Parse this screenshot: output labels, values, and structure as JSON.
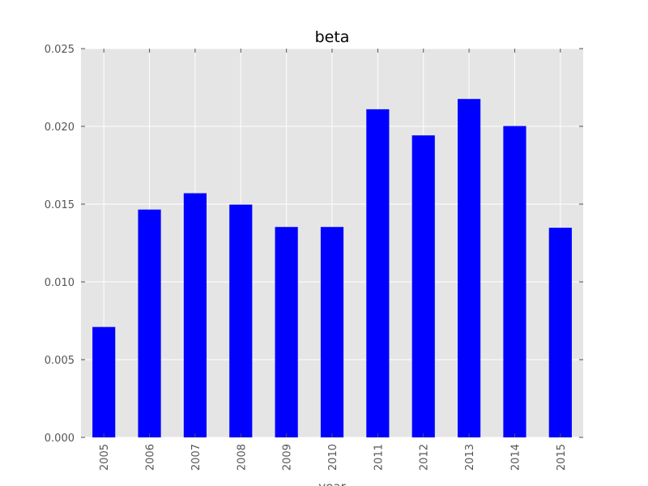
{
  "chart_data": {
    "type": "bar",
    "title": "beta",
    "xlabel": "year",
    "ylabel": "",
    "categories": [
      "2005",
      "2006",
      "2007",
      "2008",
      "2009",
      "2010",
      "2011",
      "2012",
      "2013",
      "2014",
      "2015"
    ],
    "values": [
      0.0071,
      0.01465,
      0.0157,
      0.01497,
      0.01353,
      0.01353,
      0.0211,
      0.01942,
      0.02176,
      0.02002,
      0.01348
    ],
    "ylim": [
      0,
      0.025
    ],
    "yticks": [
      0.0,
      0.005,
      0.01,
      0.015,
      0.02,
      0.025
    ],
    "ytick_labels": [
      "0.000",
      "0.005",
      "0.010",
      "0.015",
      "0.020",
      "0.025"
    ],
    "grid": true,
    "legend": "none",
    "colors": {
      "bar": "#0000ff",
      "background": "#e5e5e5",
      "grid": "#ffffff",
      "tick": "#555555"
    }
  }
}
